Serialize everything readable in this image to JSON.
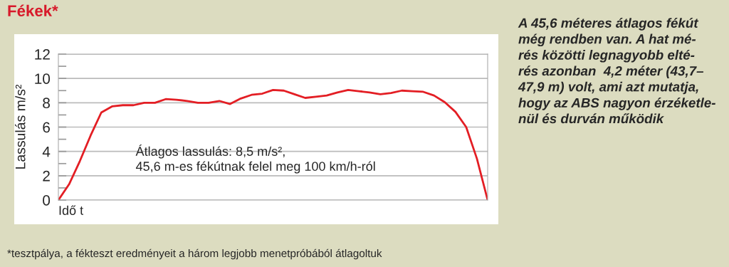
{
  "chart_data": {
    "type": "line",
    "title": "Fékek*",
    "xlabel": "Idő t",
    "ylabel": "Lassulás m/s²",
    "categories": [
      null,
      null,
      null,
      null,
      null,
      null,
      null,
      null,
      null,
      null,
      null,
      null,
      null,
      null,
      null,
      null,
      null,
      null,
      null,
      null,
      null,
      null,
      null,
      null,
      null,
      null,
      null,
      null,
      null,
      null,
      null,
      null,
      null,
      null,
      null,
      null,
      null,
      null,
      null,
      null,
      null
    ],
    "series": [
      {
        "color": "#e31e24",
        "values": [
          0,
          1.3,
          3.2,
          5.3,
          7.2,
          7.7,
          7.8,
          7.8,
          8.0,
          8.0,
          8.3,
          8.25,
          8.15,
          8.0,
          8.0,
          8.15,
          7.9,
          8.35,
          8.65,
          8.75,
          9.05,
          9.0,
          8.7,
          8.4,
          8.5,
          8.6,
          8.85,
          9.05,
          8.95,
          8.85,
          8.7,
          8.8,
          9.0,
          8.95,
          8.9,
          8.6,
          8.05,
          7.25,
          6.0,
          3.4,
          0
        ]
      }
    ],
    "ylim": [
      0,
      12
    ],
    "yticks": [
      0,
      {
        "value": 1,
        "label": null
      },
      2,
      {
        "value": 3,
        "label": null
      },
      4,
      {
        "value": 5,
        "label": null
      },
      6,
      {
        "value": 7,
        "label": null
      },
      8,
      {
        "value": 9,
        "label": null
      },
      10,
      {
        "value": 11,
        "label": null
      },
      12
    ],
    "grid": "y",
    "annotations": [
      "Átlagos lassulás: 8,5 m/s²,\n45,6 m-es fékútnak felel meg 100 km/h-ról",
      "A 45,6 méteres átlagos fékút\nmég rendben van. A hat mé-\nrés közötti legnagyobb elté-\nrés azonban  4,2 méter (43,7–\n47,9 m) volt, ami azt mutatja,\nhogy az ABS nagyon érzéketle-\nnül és durván működik",
      "*tesztpálya, a fékteszt eredményeit a három legjobb menetpróbából átlagoltuk"
    ]
  }
}
